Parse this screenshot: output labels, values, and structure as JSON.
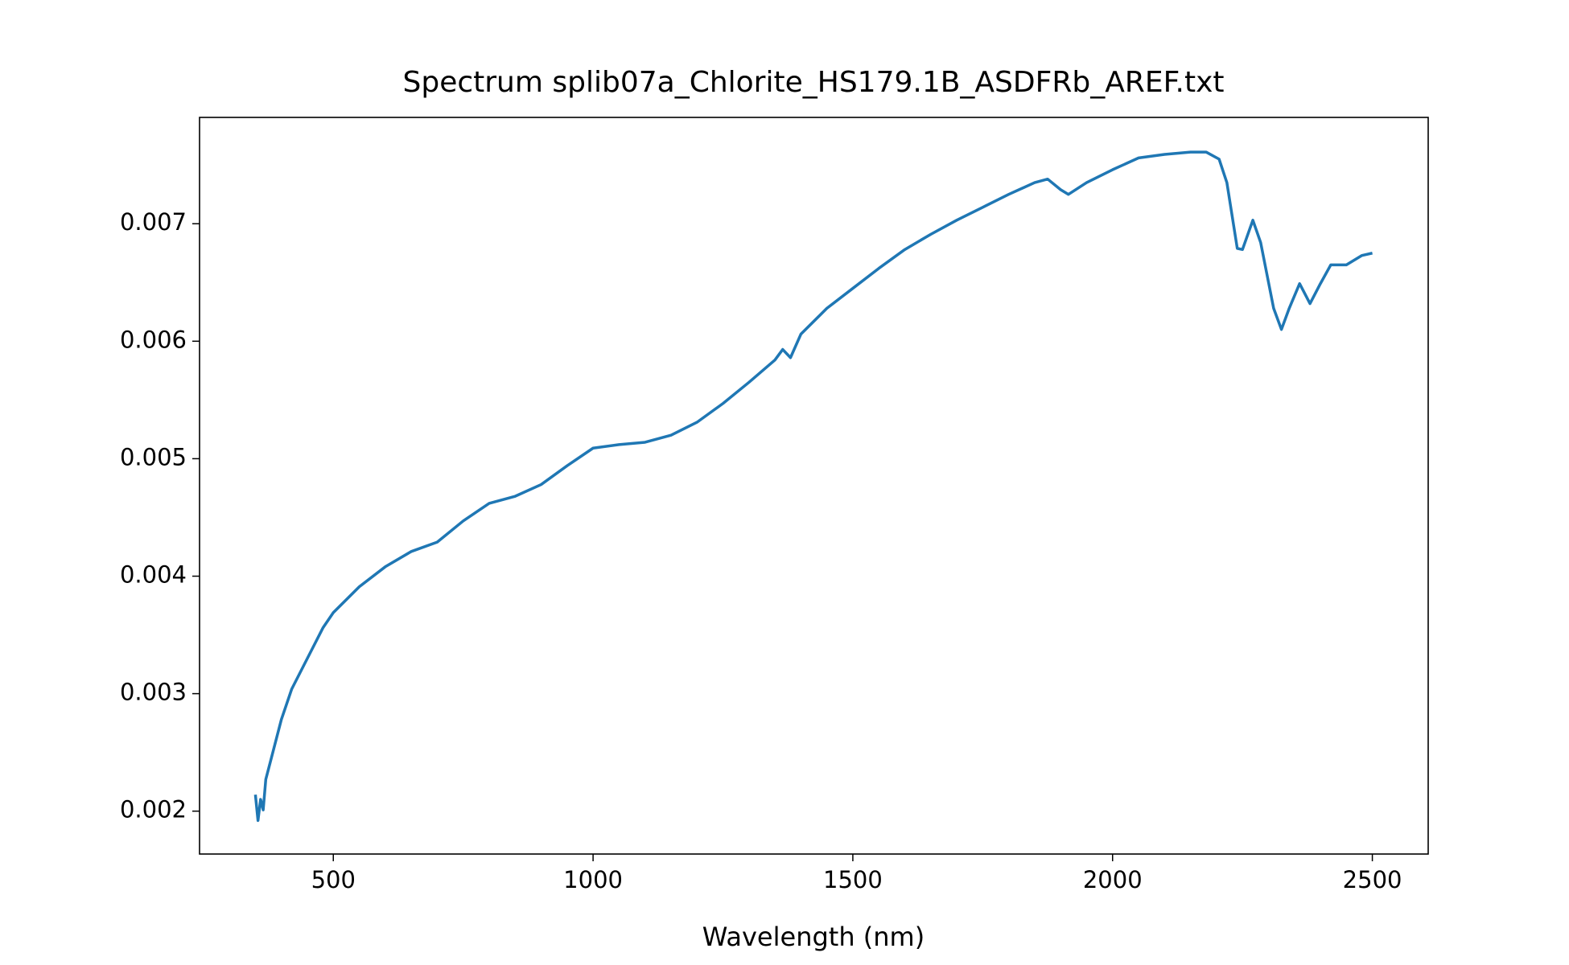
{
  "chart_data": {
    "type": "line",
    "title": "Spectrum splib07a_Chlorite_HS179.1B_ASDFRb_AREF.txt",
    "x_label": "Wavelength (nm)",
    "x": [
      350,
      355,
      360,
      365,
      370,
      380,
      400,
      420,
      450,
      480,
      500,
      550,
      600,
      650,
      700,
      750,
      800,
      850,
      900,
      950,
      1000,
      1050,
      1100,
      1150,
      1200,
      1250,
      1300,
      1350,
      1365,
      1380,
      1400,
      1450,
      1500,
      1550,
      1600,
      1650,
      1700,
      1750,
      1800,
      1850,
      1875,
      1900,
      1915,
      1950,
      2000,
      2050,
      2100,
      2150,
      2180,
      2205,
      2220,
      2240,
      2250,
      2270,
      2285,
      2310,
      2325,
      2340,
      2360,
      2380,
      2400,
      2420,
      2450,
      2480,
      2500
    ],
    "series": [
      {
        "color": "#1f77b4",
        "values": [
          0.00214,
          0.00192,
          0.0021,
          0.00201,
          0.00227,
          0.00244,
          0.00278,
          0.00304,
          0.0033,
          0.00356,
          0.00369,
          0.00391,
          0.00408,
          0.00421,
          0.00429,
          0.00447,
          0.00462,
          0.00468,
          0.00478,
          0.00494,
          0.00509,
          0.00512,
          0.00514,
          0.0052,
          0.00531,
          0.00547,
          0.00565,
          0.00584,
          0.00593,
          0.00586,
          0.00606,
          0.00628,
          0.00645,
          0.00662,
          0.00678,
          0.00691,
          0.00703,
          0.00714,
          0.00725,
          0.00735,
          0.00738,
          0.00729,
          0.00725,
          0.00735,
          0.00746,
          0.00756,
          0.00759,
          0.00761,
          0.00761,
          0.00755,
          0.00735,
          0.00679,
          0.00678,
          0.00703,
          0.00684,
          0.00628,
          0.0061,
          0.00628,
          0.00649,
          0.00632,
          0.00649,
          0.00665,
          0.00665,
          0.00673,
          0.00675
        ]
      }
    ],
    "xlim": [
      242.5,
      2607.5
    ],
    "ylim": [
      0.001635,
      0.007905
    ],
    "xticks": [
      500,
      1000,
      1500,
      2000,
      2500
    ],
    "yticks": [
      0.002,
      0.003,
      0.004,
      0.005,
      0.006,
      0.007
    ]
  }
}
